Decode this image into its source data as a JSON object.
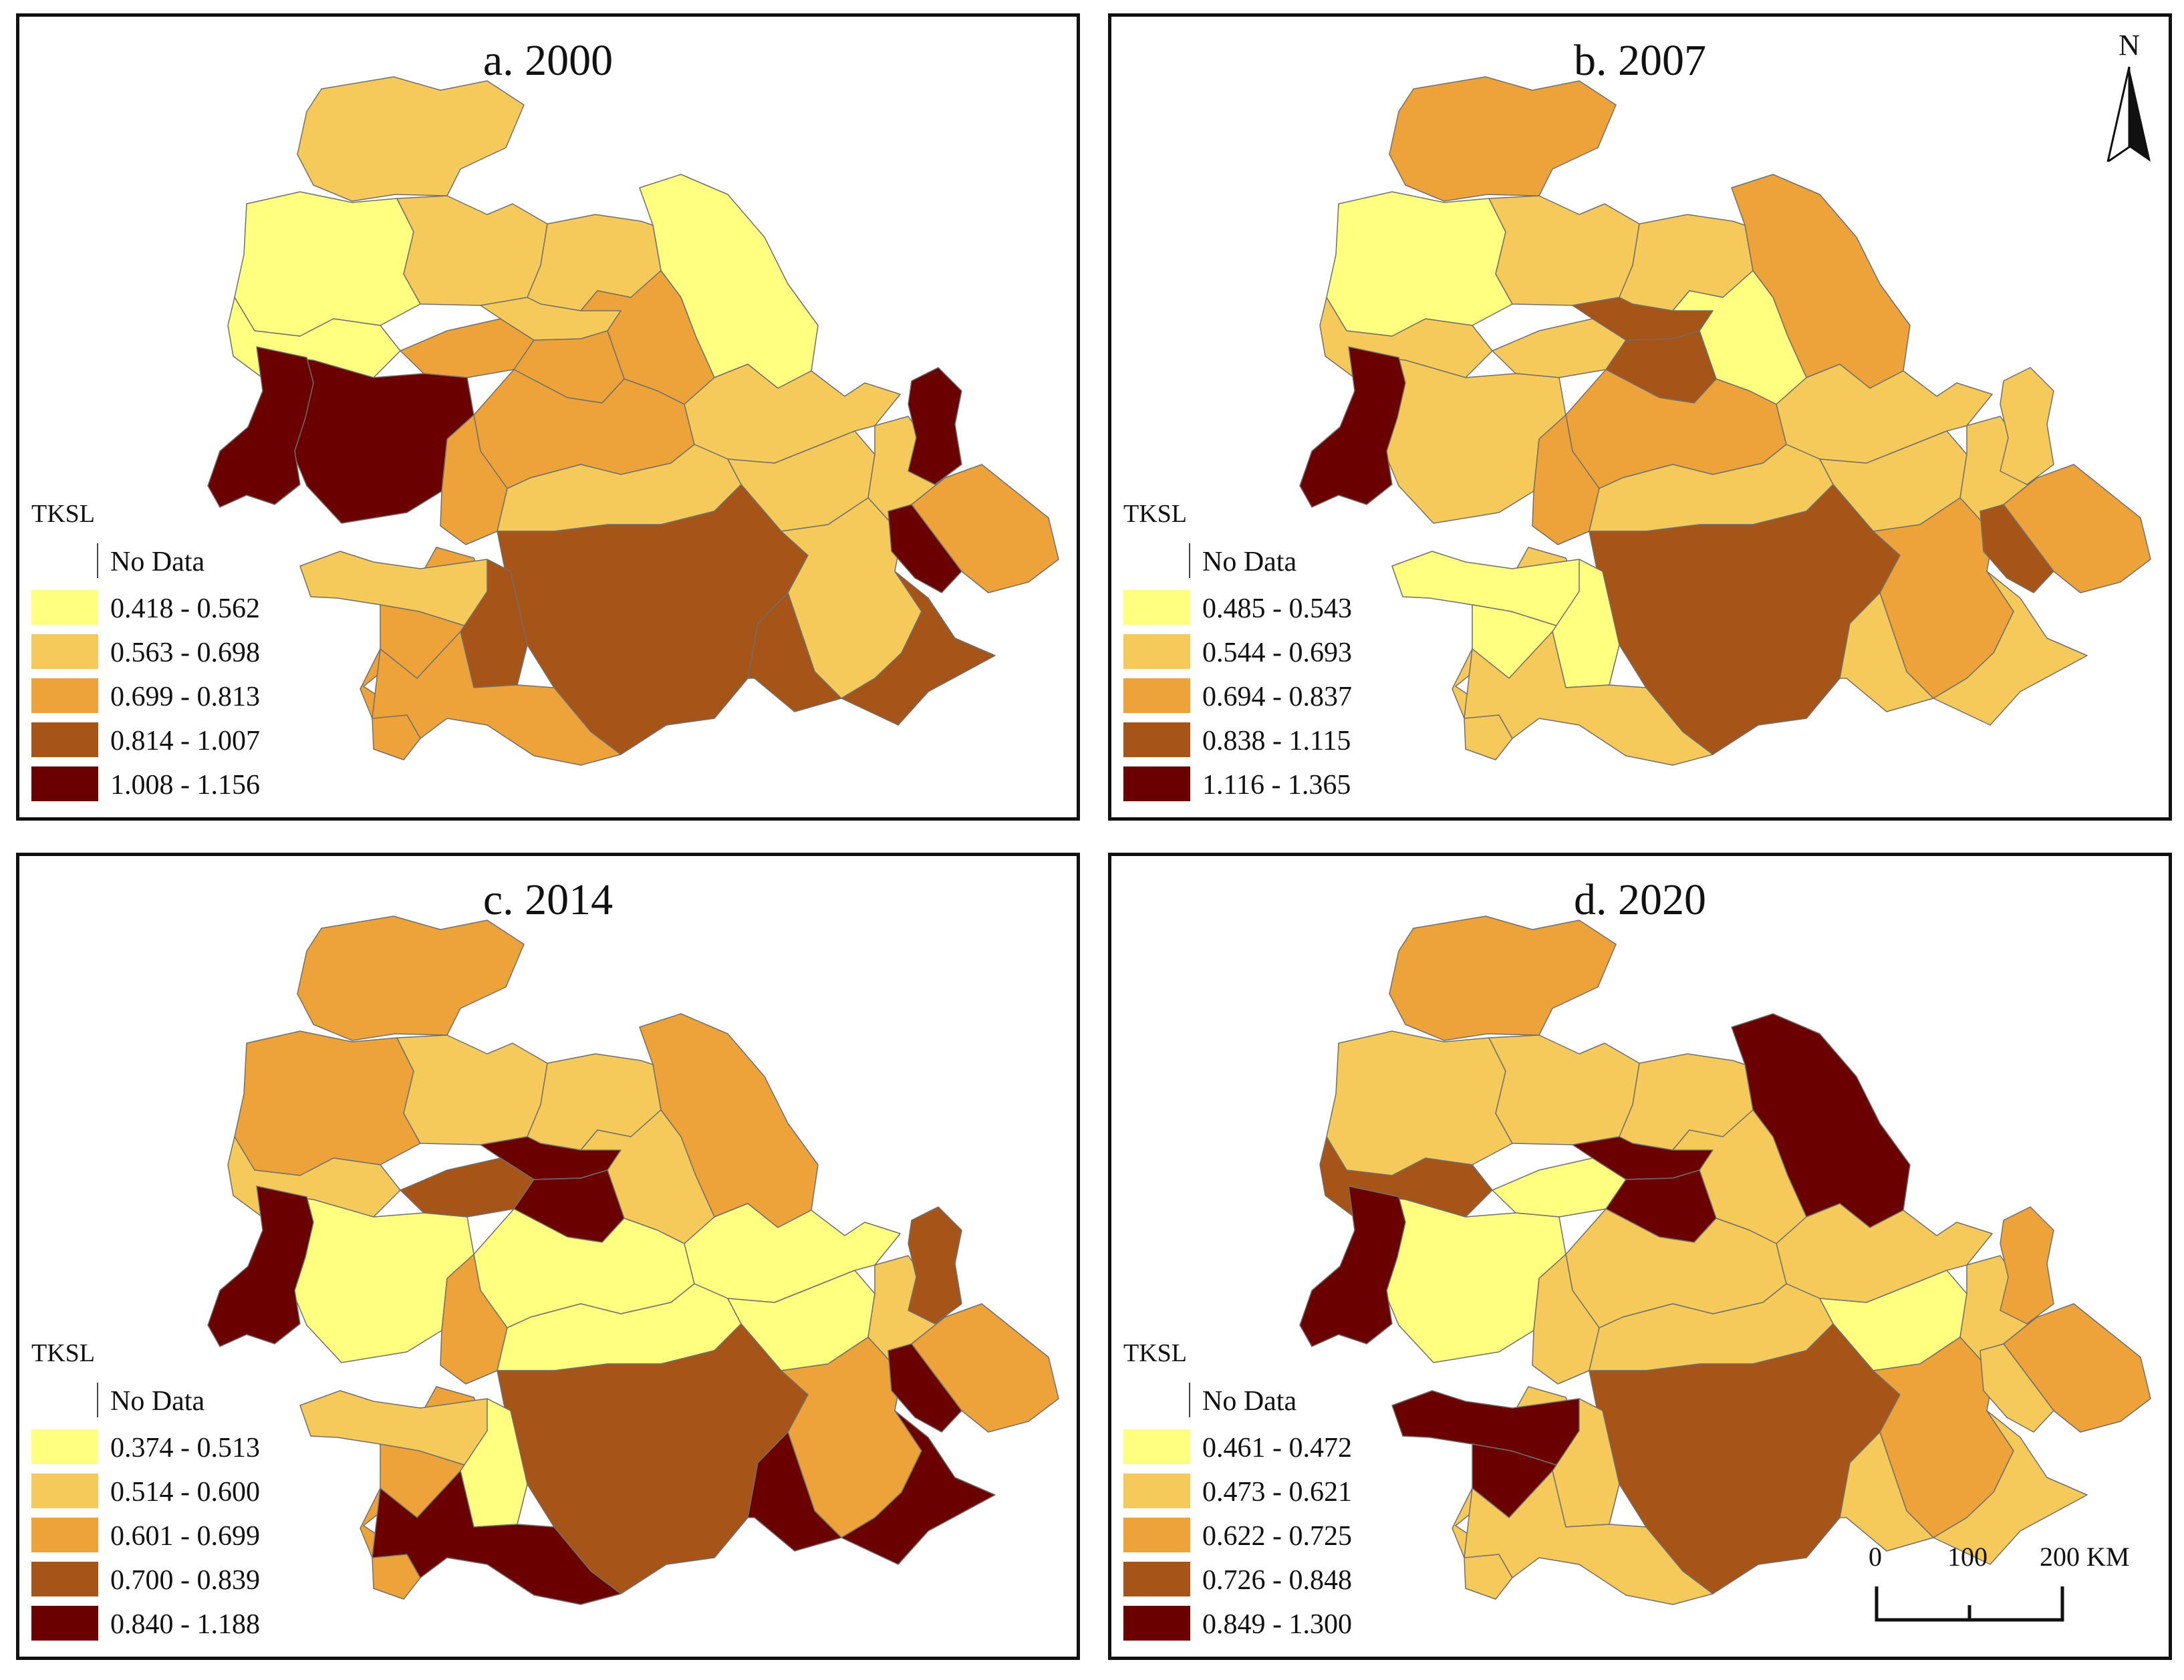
{
  "legend_title": "TKSL",
  "no_data_label": "No Data",
  "colors": {
    "c1": "#ffff80",
    "c2": "#f5ca5a",
    "c3": "#eda33a",
    "c4": "#a75418",
    "c5": "#6b0000",
    "nodata": "#ffffff"
  },
  "maps": [
    {
      "title": "a. 2000",
      "classes": [
        "0.418 - 0.562",
        "0.563 - 0.698",
        "0.699 - 0.813",
        "0.814 - 1.007",
        "1.008 - 1.156"
      ]
    },
    {
      "title": "b. 2007",
      "classes": [
        "0.485 - 0.543",
        "0.544 - 0.693",
        "0.694 - 0.837",
        "0.838 - 1.115",
        "1.116 - 1.365"
      ]
    },
    {
      "title": "c. 2014",
      "classes": [
        "0.374 - 0.513",
        "0.514 - 0.600",
        "0.601 - 0.699",
        "0.700 - 0.839",
        "0.840 - 1.188"
      ]
    },
    {
      "title": "d. 2020",
      "classes": [
        "0.461 - 0.472",
        "0.473 - 0.621",
        "0.622 - 0.725",
        "0.726 - 0.848",
        "0.849 - 1.300"
      ]
    }
  ],
  "region_classes": [
    [
      "c2",
      "c1",
      "c2",
      "c1",
      "c2",
      "c1",
      "c3",
      "c2",
      "c3",
      "c3",
      "c5",
      "c3",
      "c2",
      "c3",
      "c2",
      "c2",
      "c2",
      "c4",
      "c2",
      "c3",
      "c5",
      "c5",
      "c3",
      "c5",
      "c2",
      "c3",
      "c4",
      "c3",
      "c4"
    ],
    [
      "c3",
      "c1",
      "c2",
      "c3",
      "c2",
      "c2",
      "c2",
      "c4",
      "c1",
      "c4",
      "c2",
      "c3",
      "c2",
      "c3",
      "c2",
      "c2",
      "c2",
      "c4",
      "c3",
      "c3",
      "c2",
      "c4",
      "c2",
      "c5",
      "c1",
      "c1",
      "c1",
      "c2",
      "c2"
    ],
    [
      "c3",
      "c3",
      "c2",
      "c3",
      "c2",
      "c2",
      "c4",
      "c5",
      "c2",
      "c5",
      "c1",
      "c1",
      "c1",
      "c3",
      "c1",
      "c1",
      "c2",
      "c4",
      "c3",
      "c3",
      "c4",
      "c5",
      "c3",
      "c5",
      "c2",
      "c3",
      "c1",
      "c5",
      "c5"
    ],
    [
      "c3",
      "c2",
      "c2",
      "c5",
      "c2",
      "c4",
      "c1",
      "c5",
      "c2",
      "c5",
      "c1",
      "c2",
      "c2",
      "c2",
      "c2",
      "c1",
      "c2",
      "c4",
      "c3",
      "c3",
      "c3",
      "c2",
      "c2",
      "c5",
      "c5",
      "c5",
      "c2",
      "c2",
      "c2"
    ]
  ],
  "north_label": "N",
  "scale_labels": [
    "0",
    "100",
    "200 KM"
  ]
}
